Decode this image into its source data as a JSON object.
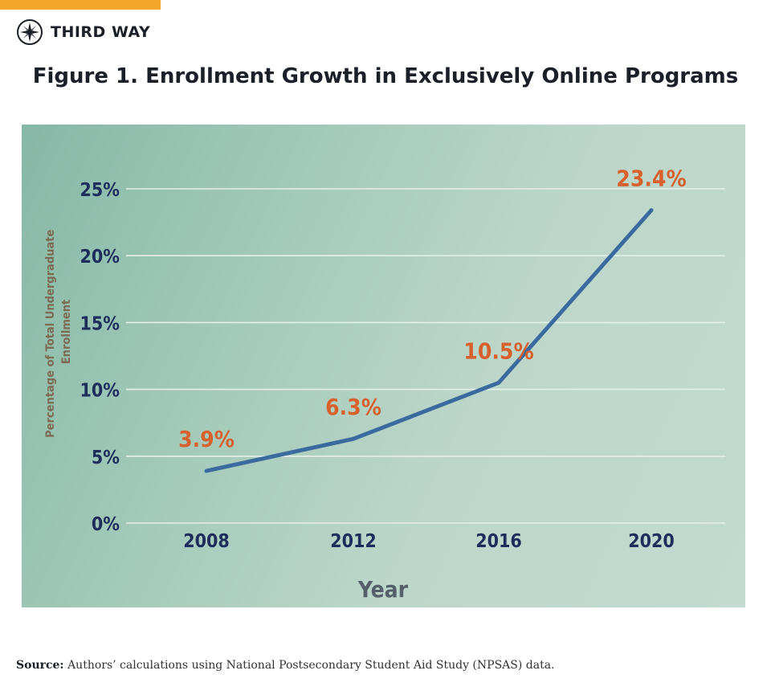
{
  "brand": {
    "name": "THIRD WAY",
    "logo_icon": "compass-icon"
  },
  "figure_title": "Figure 1. Enrollment Growth in Exclusively Online Programs",
  "chart_data": {
    "type": "line",
    "title": "Figure 1. Enrollment Growth in Exclusively Online Programs",
    "xlabel": "Year",
    "ylabel_lines": [
      "Percentage of Total Undergraduate",
      "Enrollment"
    ],
    "categories": [
      "2008",
      "2012",
      "2016",
      "2020"
    ],
    "values": [
      3.9,
      6.3,
      10.5,
      23.4
    ],
    "data_labels": [
      "3.9%",
      "6.3%",
      "10.5%",
      "23.4%"
    ],
    "yticks": [
      0,
      5,
      10,
      15,
      20,
      25
    ],
    "ytick_labels": [
      "0%",
      "5%",
      "10%",
      "15%",
      "20%",
      "25%"
    ],
    "ylim": [
      0,
      25
    ],
    "grid": true,
    "colors": {
      "line": "#3b6a9e",
      "label": "#d8602d",
      "axis_text": "#1d2d5c",
      "xlabel": "#55606a",
      "ylabel": "#7d6a52",
      "grid": "#e4efe9"
    }
  },
  "source": {
    "label": "Source:",
    "text": "Authors’ calculations using National Postsecondary Student Aid Study (NPSAS) data."
  }
}
